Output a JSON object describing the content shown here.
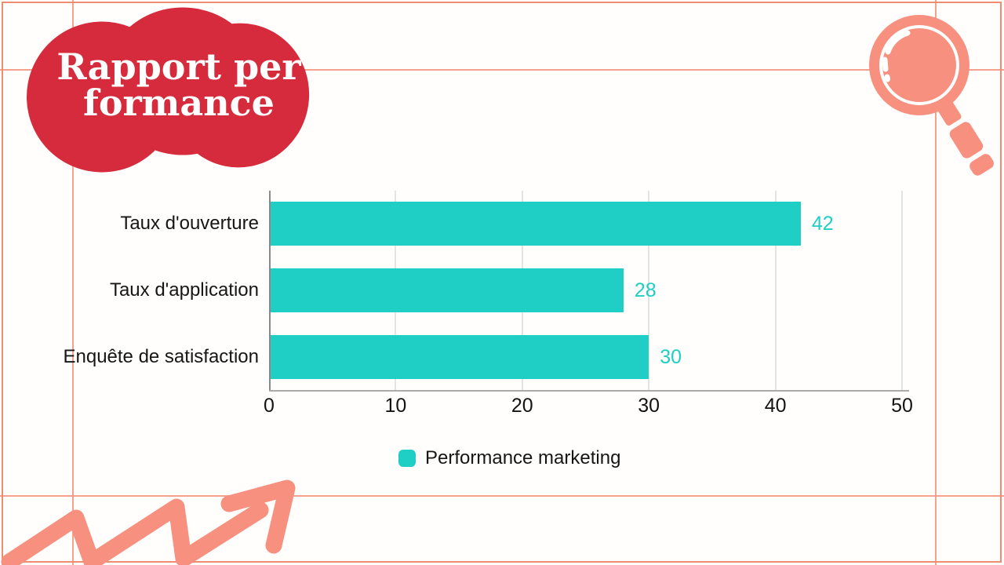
{
  "title": {
    "line1": "Rapport per",
    "line2": "formance",
    "blob_color": "#d62b3c",
    "text_color": "#ffffff"
  },
  "decor": {
    "accent_salmon": "#f7907e",
    "guide_line_color": "#f4a28e",
    "border_color": "#ef8d72",
    "magnifier_icon": "magnifying-glass",
    "arrow_icon": "zigzag-growth-arrow"
  },
  "chart_data": {
    "type": "bar",
    "orientation": "horizontal",
    "title": "",
    "categories": [
      "Taux d'ouverture",
      "Taux d'application",
      "Enquête de satisfaction"
    ],
    "values": [
      42,
      28,
      30
    ],
    "series_name": "Performance marketing",
    "bar_color": "#1fcec4",
    "value_label_color": "#1fcec4",
    "xlim": [
      0,
      50
    ],
    "x_ticks": [
      "0",
      "10",
      "20",
      "30",
      "40",
      "50"
    ],
    "grid": true,
    "legend_position": "bottom"
  }
}
